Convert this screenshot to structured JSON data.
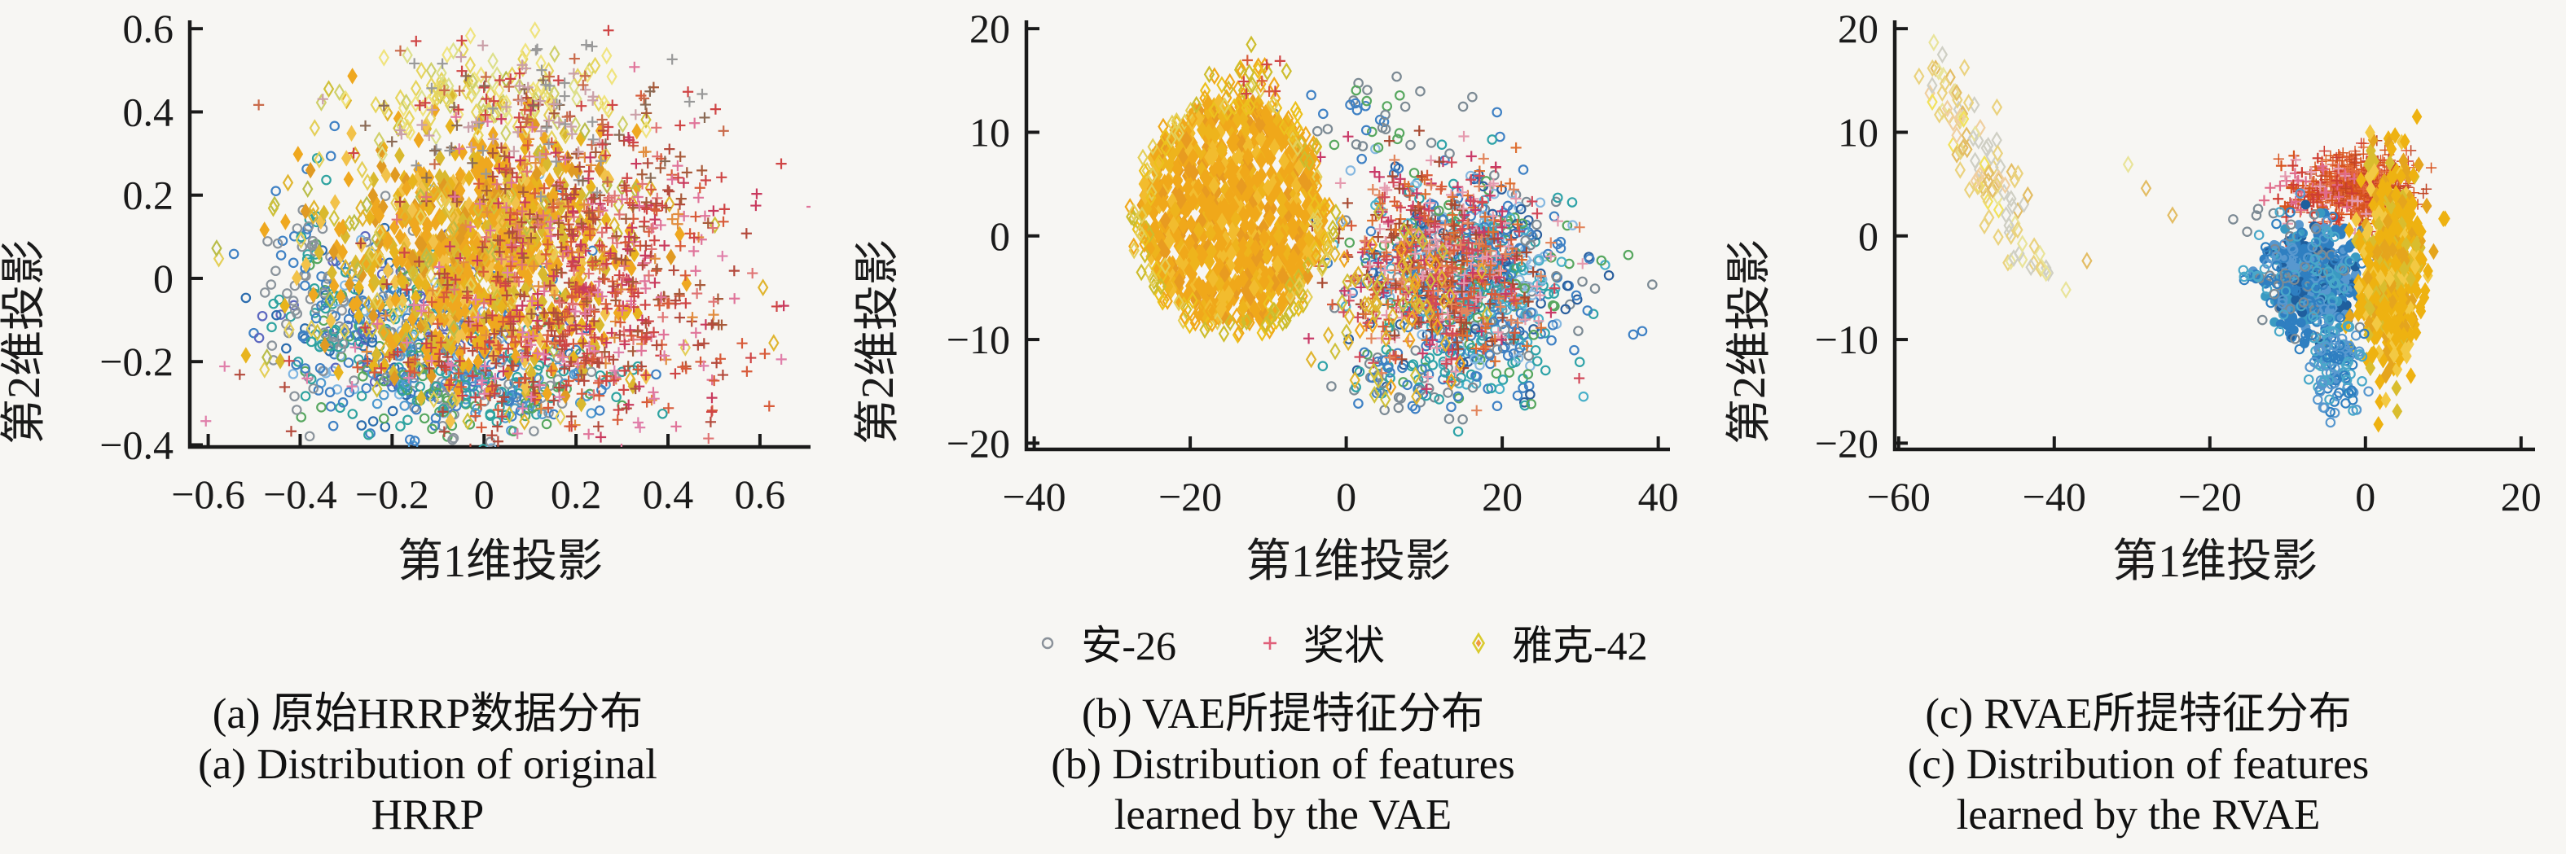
{
  "figure": {
    "legend": {
      "items": [
        {
          "label": "安-26",
          "marker": "circle",
          "stroke": "#8a9199"
        },
        {
          "label": "奖状",
          "marker": "plus",
          "stroke": "#e0607a"
        },
        {
          "label": "雅克-42",
          "marker": "diamond",
          "stroke": "#d9cb2e",
          "inner": "#f09a3e"
        }
      ]
    },
    "panels": [
      {
        "caption_zh": "(a) 原始HRRP数据分布",
        "caption_en1": "(a) Distribution of original",
        "caption_en2": "HRRP"
      },
      {
        "caption_zh": "(b) VAE所提特征分布",
        "caption_en1": "(b) Distribution of features",
        "caption_en2": "learned by the VAE"
      },
      {
        "caption_zh": "(c) RVAE所提特征分布",
        "caption_en1": "(c) Distribution of features",
        "caption_en2": "learned by the RVAE"
      }
    ]
  },
  "chart_data": [
    {
      "id": "a",
      "type": "scatter",
      "xlabel": "第1维投影",
      "ylabel": "第2维投影",
      "xlim": [
        -0.64,
        0.71
      ],
      "ylim": [
        -0.405,
        0.62
      ],
      "xticks": [
        -0.6,
        -0.4,
        -0.2,
        0,
        0.2,
        0.4,
        0.6
      ],
      "yticks": [
        -0.4,
        -0.2,
        0,
        0.2,
        0.4,
        0.6
      ],
      "box": {
        "l": 233,
        "r": 995,
        "t": 25,
        "b": 549
      },
      "grid": false,
      "seed": 11,
      "series_note": "one large overlapping blob; circles lower-left, diamonds golden core, plus marks right/top",
      "clusters": [
        {
          "series": "安-26",
          "marker": "circle",
          "n": 420,
          "cx": -0.17,
          "cy": -0.13,
          "sx": 0.14,
          "sy": 0.11,
          "colors": [
            "#3f81c4",
            "#3f81c4",
            "#2fa3a0",
            "#57a75f",
            "#8a939b",
            "#5d68c0",
            "#7fb6e2",
            "#2b6cae"
          ]
        },
        {
          "series": "安-26",
          "marker": "circle",
          "n": 220,
          "cx": 0.02,
          "cy": -0.26,
          "sx": 0.14,
          "sy": 0.055,
          "colors": [
            "#3f81c4",
            "#2fa3a0",
            "#8a939b",
            "#57a75f",
            "#4f9ad0"
          ]
        },
        {
          "series": "安-26",
          "marker": "circle",
          "n": 90,
          "cx": -0.38,
          "cy": -0.02,
          "sx": 0.055,
          "sy": 0.13,
          "colors": [
            "#8a939b",
            "#3f81c4",
            "#2fa3a0"
          ]
        },
        {
          "series": "雅克-42",
          "marker": "diamond",
          "n": 800,
          "cx": -0.01,
          "cy": 0.06,
          "sx": 0.155,
          "sy": 0.15,
          "fill": true,
          "colors": [
            "#efa81f",
            "#efa81f",
            "#efa81f",
            "#e8b41d",
            "#d9b92e",
            "#f2c24a",
            "#e09a22"
          ]
        },
        {
          "series": "雅克-42",
          "marker": "diamond",
          "n": 160,
          "cx": -0.05,
          "cy": 0.06,
          "sx": 0.24,
          "sy": 0.21,
          "colors": [
            "#cfc13a",
            "#e4cf58",
            "#e0b52f",
            "#b9bd49"
          ]
        },
        {
          "series": "雅克-42",
          "marker": "diamond",
          "n": 110,
          "cx": 0.02,
          "cy": 0.44,
          "sx": 0.16,
          "sy": 0.055,
          "colors": [
            "#dde08b",
            "#e6d55e",
            "#f0e47e",
            "#cfd06a"
          ]
        },
        {
          "series": "奖状",
          "marker": "plus",
          "n": 620,
          "cx": 0.22,
          "cy": 0.04,
          "sx": 0.16,
          "sy": 0.17,
          "colors": [
            "#d85b3a",
            "#cf4545",
            "#e28d3f",
            "#b44a3c",
            "#c93a5e",
            "#e0749a",
            "#a85a3a",
            "#e07575"
          ]
        },
        {
          "series": "奖状",
          "marker": "plus",
          "n": 200,
          "cx": 0.1,
          "cy": -0.2,
          "sx": 0.22,
          "sy": 0.09,
          "colors": [
            "#cf4545",
            "#d85b3a",
            "#b44a3c",
            "#e07faa"
          ]
        },
        {
          "series": "奖状",
          "marker": "plus",
          "n": 140,
          "cx": 0.12,
          "cy": 0.4,
          "sx": 0.18,
          "sy": 0.08,
          "colors": [
            "#c96a4a",
            "#8a6a55",
            "#cf4545",
            "#caa0a8",
            "#999999"
          ]
        }
      ]
    },
    {
      "id": "b",
      "type": "scatter",
      "xlabel": "第1维投影",
      "ylabel": "第2维投影",
      "xlim": [
        -41,
        41.5
      ],
      "ylim": [
        -20.6,
        20.8
      ],
      "xticks": [
        -40,
        -20,
        0,
        20,
        40
      ],
      "yticks": [
        -20,
        -10,
        0,
        10,
        20
      ],
      "box": {
        "l": 210,
        "r": 1000,
        "t": 25,
        "b": 552
      },
      "grid": false,
      "seed": 22,
      "series_note": "dense golden diamond disc centered (-15,2); mixed circle+plus cloud centered (15,-4)",
      "clusters": [
        {
          "series": "安-26",
          "marker": "circle",
          "n": 680,
          "cx": 16,
          "cy": -4.5,
          "sx": 7.0,
          "sy": 5.0,
          "colors": [
            "#3f81c4",
            "#3f81c4",
            "#7c8a94",
            "#2fa3a8",
            "#57a75f",
            "#86b8e0",
            "#2b5f9e",
            "#49b0c9"
          ]
        },
        {
          "series": "安-26",
          "marker": "circle",
          "n": 60,
          "cx": 9,
          "cy": -14,
          "sx": 5,
          "sy": 1.7,
          "colors": [
            "#7c8a94",
            "#3f81c4",
            "#2fa3a8"
          ]
        },
        {
          "series": "安-26",
          "marker": "circle",
          "n": 40,
          "cx": 3,
          "cy": 11,
          "sx": 5,
          "sy": 2.4,
          "colors": [
            "#7c8a94",
            "#3f81c4",
            "#57a75f"
          ]
        },
        {
          "series": "奖状",
          "marker": "plus",
          "n": 600,
          "cx": 12,
          "cy": -3,
          "sx": 6.4,
          "sy": 4.6,
          "colors": [
            "#d2495a",
            "#e2855c",
            "#de6f31",
            "#c93a68",
            "#e59aae",
            "#a84a32",
            "#d85b3a"
          ]
        },
        {
          "series": "雅克-42",
          "marker": "diamond",
          "n": 70,
          "cx": 6,
          "cy": -6,
          "sx": 5,
          "sy": 4.4,
          "colors": [
            "#e0b52f",
            "#cfc13a",
            "#efa81f"
          ]
        },
        {
          "series": "雅克-42",
          "marker": "diamond",
          "n": 820,
          "cx": -14.5,
          "cy": 2.3,
          "dist": "disc",
          "R": 11.8,
          "fill": true,
          "sz": 1.1,
          "colors": [
            "#f0a81a",
            "#f0a81a",
            "#f0a81a",
            "#eeb41c",
            "#e89b20",
            "#f2bc2e"
          ]
        },
        {
          "series": "雅克-42",
          "marker": "diamond",
          "n": 170,
          "cx": -14.5,
          "cy": 2.3,
          "dist": "ring",
          "R": 12.6,
          "colors": [
            "#ecc11d",
            "#cdbd2d",
            "#f0a81a",
            "#e4cf58"
          ]
        },
        {
          "series": "雅克-42",
          "marker": "diamond",
          "n": 16,
          "cx": -12,
          "cy": 15.8,
          "sx": 3,
          "sy": 1.2,
          "colors": [
            "#ecc11d",
            "#f0a81a",
            "#cdbd2d"
          ]
        },
        {
          "series": "奖状",
          "marker": "plus",
          "n": 8,
          "cx": -12,
          "cy": 15,
          "sx": 3,
          "sy": 1.5,
          "colors": [
            "#cf4545",
            "#d85b3a"
          ]
        }
      ]
    },
    {
      "id": "c",
      "type": "scatter",
      "xlabel": "第1维投影",
      "ylabel": "第2维投影",
      "xlim": [
        -60.5,
        21.8
      ],
      "ylim": [
        -20.6,
        20.8
      ],
      "xticks": [
        -60,
        -40,
        -20,
        0,
        20
      ],
      "yticks": [
        -20,
        -10,
        0,
        10,
        20
      ],
      "box": {
        "l": 226,
        "r": 1012,
        "t": 25,
        "b": 552
      },
      "grid": false,
      "seed": 33,
      "series_note": "sparse diamond trail upper-left; tight plus, circle and diamond clusters near origin",
      "clusters": [
        {
          "series": "雅克-42",
          "marker": "diamond",
          "n": 85,
          "dist": "line",
          "x1": -56,
          "y1": 16.5,
          "x2": -45,
          "y2": 1.5,
          "sx": 1.7,
          "sy": 1.4,
          "colors": [
            "#e9e49a",
            "#e3bd64",
            "#f0cfa0",
            "#cfcfc4",
            "#f2e25c",
            "#ead27e"
          ]
        },
        {
          "series": "雅克-42",
          "marker": "diamond",
          "n": 22,
          "dist": "line",
          "x1": -47,
          "y1": 1,
          "x2": -41,
          "y2": -4,
          "sx": 1.5,
          "sy": 1.2,
          "colors": [
            "#e9e49a",
            "#ead27e",
            "#cfcfc4"
          ]
        },
        {
          "series": "雅克-42",
          "marker": "diamond",
          "pts": [
            [
              -28.2,
              4.6
            ],
            [
              -30.5,
              6.9
            ],
            [
              -24.8,
              2.0
            ],
            [
              -38.5,
              -5.2
            ],
            [
              -35.8,
              -2.4
            ]
          ],
          "colors": [
            "#e9e49a",
            "#e3bd64"
          ]
        },
        {
          "series": "奖状",
          "marker": "plus",
          "n": 620,
          "cx": -0.8,
          "cy": 4.7,
          "sx": 3.1,
          "sy": 1.5,
          "fill": true,
          "colors": [
            "#d8531d",
            "#d8531d",
            "#cf3d32",
            "#e4703b",
            "#c04424",
            "#e2633c"
          ]
        },
        {
          "series": "奖状",
          "marker": "plus",
          "n": 90,
          "cx": -6.5,
          "cy": 4.2,
          "sx": 2.6,
          "sy": 1.7,
          "colors": [
            "#cf3d32",
            "#e06a8a",
            "#d8531d",
            "#e59aae"
          ]
        },
        {
          "series": "安-26",
          "marker": "circle",
          "n": 560,
          "cx": -6.6,
          "cy": -4.2,
          "sx": 2.7,
          "sy": 2.1,
          "fill": true,
          "colors": [
            "#2f7fc1",
            "#2f7fc1",
            "#2f7fc1",
            "#5898cf",
            "#1f5f9e",
            "#3a9ac2"
          ]
        },
        {
          "series": "安-26",
          "marker": "circle",
          "n": 150,
          "cx": -8.2,
          "cy": -3.6,
          "sx": 3.8,
          "sy": 2.9,
          "colors": [
            "#2f7fc1",
            "#5898cf",
            "#49a8c9",
            "#7c8a94"
          ]
        },
        {
          "series": "雅克-42",
          "marker": "diamond",
          "n": 620,
          "cx": 3.3,
          "cy": -3.0,
          "sx": 1.9,
          "sy": 4.7,
          "fill": true,
          "colors": [
            "#eeb211",
            "#eeb211",
            "#eeb211",
            "#e5a51d",
            "#d9bd2e",
            "#f3c943"
          ]
        },
        {
          "series": "安-26",
          "marker": "circle",
          "n": 130,
          "cx": -3.8,
          "cy": -12.3,
          "sx": 1.7,
          "sy": 2.5,
          "colors": [
            "#2f7fc1",
            "#49a8c9",
            "#5898cf"
          ]
        },
        {
          "series": "安-26",
          "marker": "circle",
          "pts": [
            [
              -17,
              1.6
            ],
            [
              -15.2,
              0.4
            ],
            [
              -13.8,
              2.6
            ]
          ],
          "colors": [
            "#7c8a94",
            "#2f7fc1"
          ]
        }
      ]
    }
  ]
}
